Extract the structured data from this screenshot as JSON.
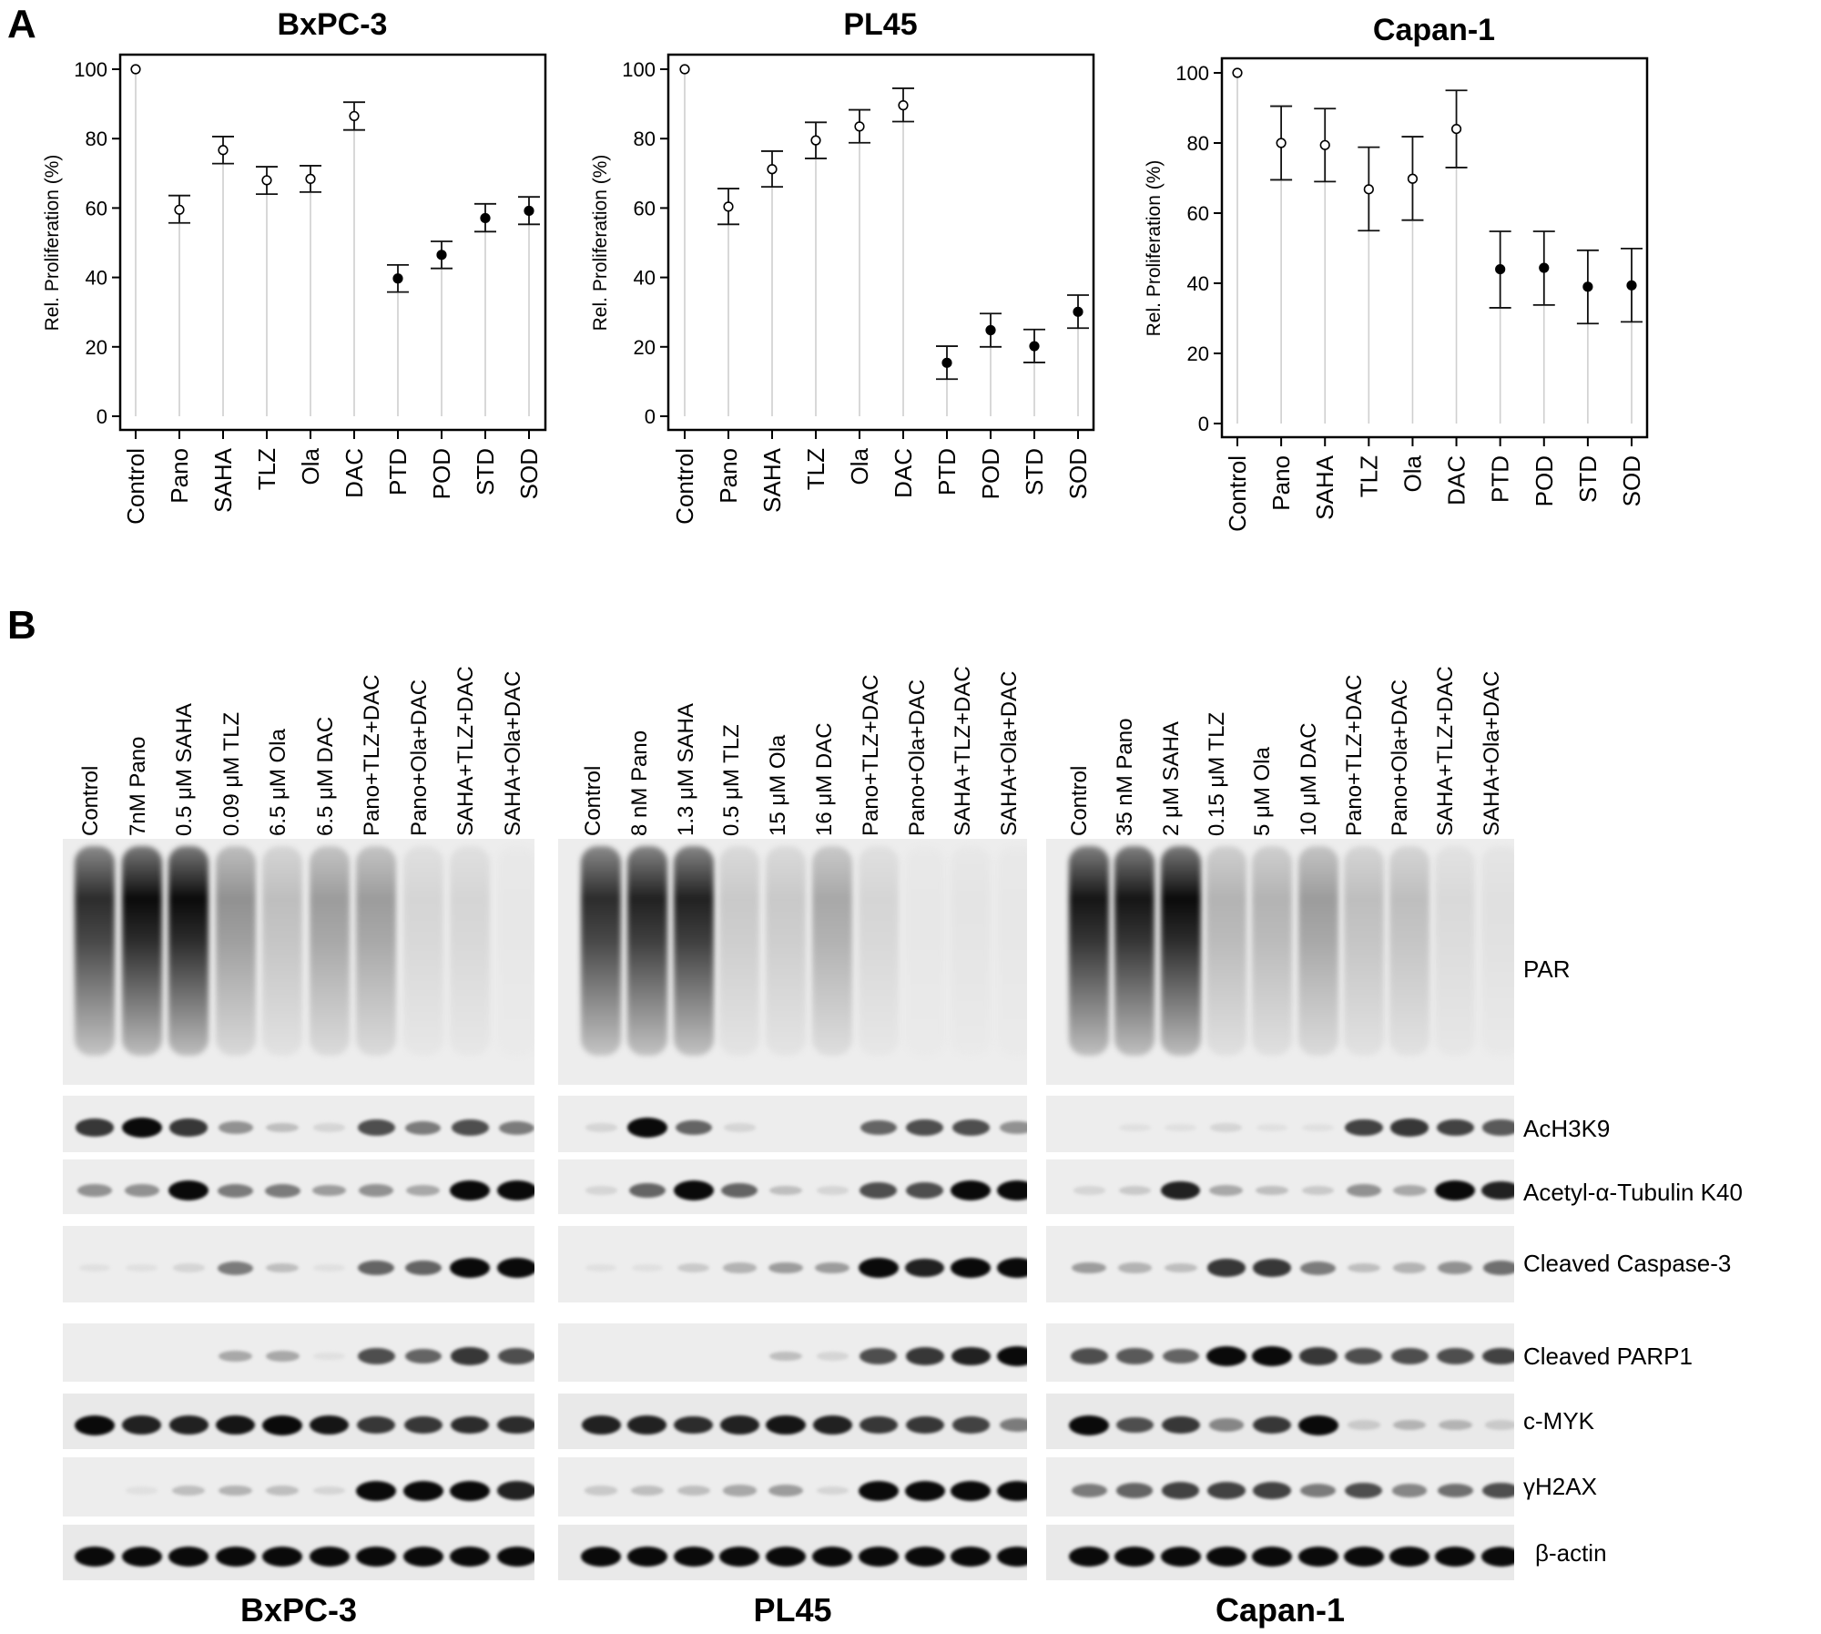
{
  "figure": {
    "panel_a_letter": "A",
    "panel_b_letter": "B"
  },
  "chart_data": [
    {
      "type": "scatter",
      "title": "BxPC-3",
      "xlabel": "",
      "ylabel": "Rel. Proliferation (%)",
      "ylim": [
        0,
        100
      ],
      "yticks": [
        0,
        20,
        40,
        60,
        80,
        100
      ],
      "grid": false,
      "categories": [
        "Control",
        "Pano",
        "SAHA",
        "TLZ",
        "Ola",
        "DAC",
        "PTD",
        "POD",
        "STD",
        "SOD"
      ],
      "values": [
        100,
        59.5,
        76.7,
        68,
        68.4,
        86.5,
        39.7,
        46.5,
        57.1,
        59.2
      ],
      "error_low": [
        100,
        55.7,
        72.8,
        64,
        64.6,
        82.5,
        35.8,
        42.6,
        53.2,
        55.3
      ],
      "error_high": [
        100,
        63.6,
        80.6,
        71.9,
        72.2,
        90.5,
        43.6,
        50.4,
        61.2,
        63.2
      ],
      "filled": [
        false,
        false,
        false,
        false,
        false,
        false,
        true,
        true,
        true,
        true
      ]
    },
    {
      "type": "scatter",
      "title": "PL45",
      "xlabel": "",
      "ylabel": "Rel. Proliferation (%)",
      "ylim": [
        0,
        100
      ],
      "yticks": [
        0,
        20,
        40,
        60,
        80,
        100
      ],
      "grid": false,
      "categories": [
        "Control",
        "Pano",
        "SAHA",
        "TLZ",
        "Ola",
        "DAC",
        "PTD",
        "POD",
        "STD",
        "SOD"
      ],
      "values": [
        100,
        60.4,
        71.2,
        79.5,
        83.5,
        89.6,
        15.4,
        24.8,
        20.2,
        30.1
      ],
      "error_low": [
        100,
        55.3,
        66.1,
        74.3,
        78.8,
        84.9,
        10.7,
        20.0,
        15.5,
        25.4
      ],
      "error_high": [
        100,
        65.6,
        76.4,
        84.7,
        88.3,
        94.5,
        20.2,
        29.6,
        25.0,
        34.9
      ],
      "filled": [
        false,
        false,
        false,
        false,
        false,
        false,
        true,
        true,
        true,
        true
      ]
    },
    {
      "type": "scatter",
      "title": "Capan-1",
      "xlabel": "",
      "ylabel": "Rel. Proliferation (%)",
      "ylim": [
        0,
        100
      ],
      "yticks": [
        0,
        20,
        40,
        60,
        80,
        100
      ],
      "grid": false,
      "categories": [
        "Control",
        "Pano",
        "SAHA",
        "TLZ",
        "Ola",
        "DAC",
        "PTD",
        "POD",
        "STD",
        "SOD"
      ],
      "values": [
        100,
        80,
        79.4,
        66.8,
        69.8,
        84,
        44,
        44.4,
        39,
        39.4
      ],
      "error_low": [
        100,
        69.5,
        69,
        55,
        58,
        73,
        33,
        33.8,
        28.5,
        29
      ],
      "error_high": [
        100,
        90.5,
        89.8,
        78.8,
        81.8,
        95,
        54.8,
        54.8,
        49.4,
        49.9
      ],
      "filled": [
        false,
        false,
        false,
        false,
        false,
        false,
        true,
        true,
        true,
        true
      ]
    }
  ],
  "blot": {
    "proteins": [
      "PAR",
      "AcH3K9",
      "Acetyl-α-Tubulin K40",
      "Cleaved Caspase-3",
      "Cleaved PARP1",
      "c-MYK",
      "γH2AX",
      "β-actin"
    ],
    "cell_lines": [
      {
        "name": "BxPC-3",
        "lanes": [
          "Control",
          "7nM Pano",
          "0.5 μM SAHA",
          "0.09 μM TLZ",
          "6.5 μM Ola",
          "6.5 μM DAC",
          "Pano+TLZ+DAC",
          "Pano+Ola+DAC",
          "SAHA+TLZ+DAC",
          "SAHA+Ola+DAC"
        ],
        "intensity": {
          "AcH3K9": [
            0.8,
            1.0,
            0.8,
            0.4,
            0.2,
            0.1,
            0.7,
            0.5,
            0.7,
            0.5
          ],
          "Acetyl-α-Tubulin K40": [
            0.4,
            0.4,
            1.0,
            0.5,
            0.5,
            0.35,
            0.4,
            0.3,
            1.0,
            1.0
          ],
          "Cleaved Caspase-3": [
            0.05,
            0.05,
            0.1,
            0.5,
            0.2,
            0.05,
            0.6,
            0.6,
            1.0,
            1.0
          ],
          "Cleaved PARP1": [
            0,
            0,
            0,
            0.3,
            0.3,
            0.05,
            0.7,
            0.6,
            0.8,
            0.7
          ],
          "c-MYK": [
            1.0,
            0.9,
            0.9,
            0.95,
            1.0,
            0.95,
            0.8,
            0.8,
            0.85,
            0.85
          ],
          "γH2AX": [
            0,
            0.05,
            0.2,
            0.25,
            0.2,
            0.1,
            1.0,
            1.0,
            1.0,
            0.9
          ],
          "β-actin": [
            1,
            1,
            1,
            1,
            1,
            1,
            1,
            1,
            1,
            1
          ]
        }
      },
      {
        "name": "PL45",
        "lanes": [
          "Control",
          "8 nM Pano",
          "1.3 μM SAHA",
          "0.5 μM TLZ",
          "15 μM Ola",
          "16 μM DAC",
          "Pano+TLZ+DAC",
          "Pano+Ola+DAC",
          "SAHA+TLZ+DAC",
          "SAHA+Ola+DAC"
        ],
        "intensity": {
          "AcH3K9": [
            0.1,
            1.0,
            0.6,
            0.1,
            0,
            0,
            0.6,
            0.7,
            0.7,
            0.4
          ],
          "Acetyl-α-Tubulin K40": [
            0.1,
            0.6,
            1.0,
            0.6,
            0.2,
            0.1,
            0.7,
            0.7,
            1.0,
            1.0
          ],
          "Cleaved Caspase-3": [
            0.05,
            0.05,
            0.15,
            0.25,
            0.35,
            0.35,
            1.0,
            0.9,
            1.0,
            1.0
          ],
          "Cleaved PARP1": [
            0,
            0,
            0,
            0,
            0.2,
            0.1,
            0.7,
            0.8,
            0.9,
            1.0
          ],
          "c-MYK": [
            0.9,
            0.9,
            0.85,
            0.9,
            0.95,
            0.9,
            0.8,
            0.8,
            0.75,
            0.5
          ],
          "γH2AX": [
            0.15,
            0.2,
            0.2,
            0.3,
            0.35,
            0.1,
            1.0,
            1.0,
            1.0,
            1.0
          ],
          "β-actin": [
            1,
            1,
            1,
            1,
            1,
            1,
            1,
            1,
            1,
            1
          ]
        }
      },
      {
        "name": "Capan-1",
        "lanes": [
          "Control",
          "35 nM Pano",
          "2 μM SAHA",
          "0.15 μM TLZ",
          "5 μM Ola",
          "10 μM DAC",
          "Pano+TLZ+DAC",
          "Pano+Ola+DAC",
          "SAHA+TLZ+DAC",
          "SAHA+Ola+DAC"
        ],
        "intensity": {
          "AcH3K9": [
            0,
            0.05,
            0.05,
            0.1,
            0.05,
            0.05,
            0.75,
            0.8,
            0.75,
            0.65
          ],
          "Acetyl-α-Tubulin K40": [
            0.1,
            0.15,
            0.9,
            0.3,
            0.2,
            0.15,
            0.4,
            0.3,
            1.0,
            0.9
          ],
          "Cleaved Caspase-3": [
            0.35,
            0.25,
            0.2,
            0.8,
            0.8,
            0.5,
            0.2,
            0.25,
            0.4,
            0.55
          ],
          "Cleaved PARP1": [
            0.7,
            0.65,
            0.6,
            1.0,
            1.0,
            0.8,
            0.7,
            0.7,
            0.7,
            0.75
          ],
          "c-MYK": [
            1.0,
            0.7,
            0.8,
            0.45,
            0.8,
            1.0,
            0.15,
            0.25,
            0.25,
            0.15
          ],
          "γH2AX": [
            0.5,
            0.6,
            0.75,
            0.75,
            0.75,
            0.5,
            0.7,
            0.45,
            0.55,
            0.7
          ],
          "β-actin": [
            1,
            1,
            1,
            1,
            1,
            1,
            1,
            1,
            1,
            1
          ]
        }
      }
    ]
  }
}
